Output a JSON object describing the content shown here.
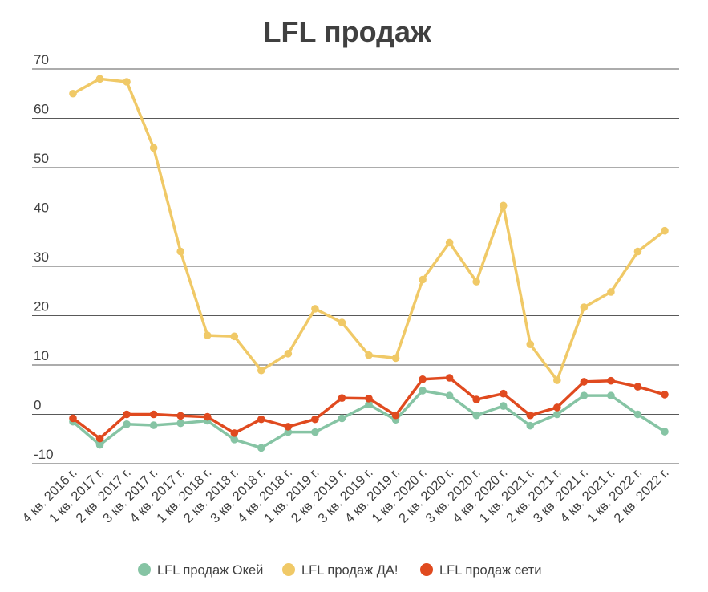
{
  "chart_data": {
    "type": "line",
    "title": "LFL продаж",
    "xlabel": "",
    "ylabel": "",
    "ylim": [
      -10,
      70
    ],
    "yticks": [
      70,
      60,
      50,
      40,
      30,
      20,
      10,
      0,
      -10
    ],
    "ytick_labels": [
      "70",
      "60",
      "50",
      "40",
      "30",
      "20",
      "10",
      "0",
      "-10"
    ],
    "grid": true,
    "legend_position": "bottom",
    "categories": [
      "4 кв. 2016 г.",
      "1 кв. 2017 г.",
      "2 кв. 2017 г.",
      "3 кв. 2017 г.",
      "4 кв. 2017 г.",
      "1 кв. 2018 г.",
      "2 кв. 2018 г.",
      "3 кв. 2018 г.",
      "4 кв. 2018 г.",
      "1 кв. 2019 г.",
      "2 кв. 2019 г.",
      "3 кв. 2019 г.",
      "4 кв. 2019 г.",
      "1 кв. 2020 г.",
      "2 кв. 2020 г.",
      "3 кв. 2020 г.",
      "4 кв. 2020 г.",
      "1 кв. 2021 г.",
      "2 кв. 2021 г.",
      "3 кв. 2021 г.",
      "4 кв. 2021 г.",
      "1 кв. 2022 г.",
      "2 кв. 2022 г."
    ],
    "series": [
      {
        "name": "LFL продаж ДА!",
        "color": "#f0c967",
        "values": [
          65,
          68,
          67.4,
          54,
          33,
          16,
          15.8,
          8.9,
          12.3,
          21.4,
          18.6,
          12,
          11.4,
          27.3,
          34.8,
          26.9,
          42.3,
          14.2,
          6.9,
          21.7,
          24.8,
          33,
          37.2
        ]
      },
      {
        "name": "LFL продаж Окей",
        "color": "#86c4a4",
        "values": [
          -1.5,
          -6.2,
          -2,
          -2.2,
          -1.8,
          -1.3,
          -5.1,
          -6.8,
          -3.6,
          -3.6,
          -0.8,
          2,
          -1.1,
          4.8,
          3.8,
          -0.2,
          1.7,
          -2.3,
          0,
          3.8,
          3.8,
          0,
          -3.5
        ]
      },
      {
        "name": "LFL продаж сети",
        "color": "#e04a1f",
        "values": [
          -0.8,
          -4.9,
          0,
          0,
          -0.3,
          -0.5,
          -3.8,
          -1,
          -2.5,
          -1,
          3.3,
          3.2,
          -0.2,
          7.1,
          7.4,
          3,
          4.2,
          -0.2,
          1.4,
          6.6,
          6.8,
          5.6,
          4
        ]
      }
    ],
    "legend": [
      {
        "label": "LFL продаж Окей",
        "color": "#86c4a4"
      },
      {
        "label": "LFL продаж ДА!",
        "color": "#f0c967"
      },
      {
        "label": "LFL продаж сети",
        "color": "#e04a1f"
      }
    ]
  }
}
